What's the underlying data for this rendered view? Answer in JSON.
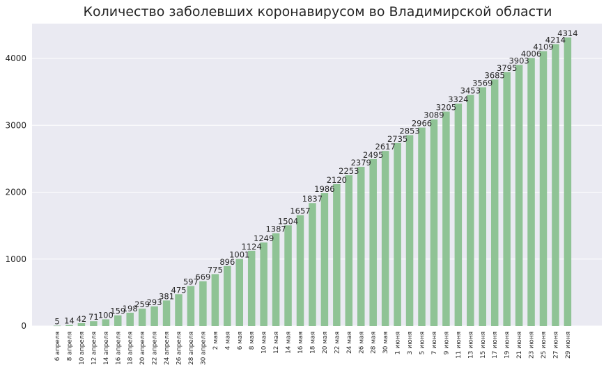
{
  "chart_data": {
    "type": "bar",
    "title": "Количество заболевших коронавирусом во Владимирской области",
    "xlabel": "",
    "ylabel": "",
    "ylim": [
      0,
      4520
    ],
    "yticks": [
      0,
      1000,
      2000,
      3000,
      4000
    ],
    "grid": true,
    "legend": "none",
    "bar_color": "#8fc395",
    "background_color": "#eaeaf2",
    "grid_color": "#ffffff",
    "categories": [
      "6 апреля",
      "8 апреля",
      "10 апреля",
      "12 апреля",
      "14 апреля",
      "16 апреля",
      "18 апреля",
      "20 апреля",
      "22 апреля",
      "24 апреля",
      "26 апреля",
      "28 апреля",
      "30 апреля",
      "2 мая",
      "4 мая",
      "6 мая",
      "8 мая",
      "10 мая",
      "12 мая",
      "14 мая",
      "16 мая",
      "18 мая",
      "20 мая",
      "22 мая",
      "24 мая",
      "26 мая",
      "28 мая",
      "30 мая",
      "1 июня",
      "3 июня",
      "5 июня",
      "7 июня",
      "9 июня",
      "11 июня",
      "13 июня",
      "15 июня",
      "17 июня",
      "19 июня",
      "21 июня",
      "23 июня",
      "25 июня",
      "27 июня",
      "29 июня"
    ],
    "values": [
      5,
      14,
      42,
      71,
      100,
      159,
      198,
      259,
      293,
      381,
      475,
      597,
      669,
      775,
      896,
      1001,
      1124,
      1249,
      1387,
      1504,
      1657,
      1837,
      1986,
      2120,
      2253,
      2379,
      2495,
      2617,
      2735,
      2853,
      2966,
      3089,
      3205,
      3324,
      3453,
      3569,
      3685,
      3795,
      3903,
      4006,
      4109,
      4214,
      4314
    ]
  }
}
